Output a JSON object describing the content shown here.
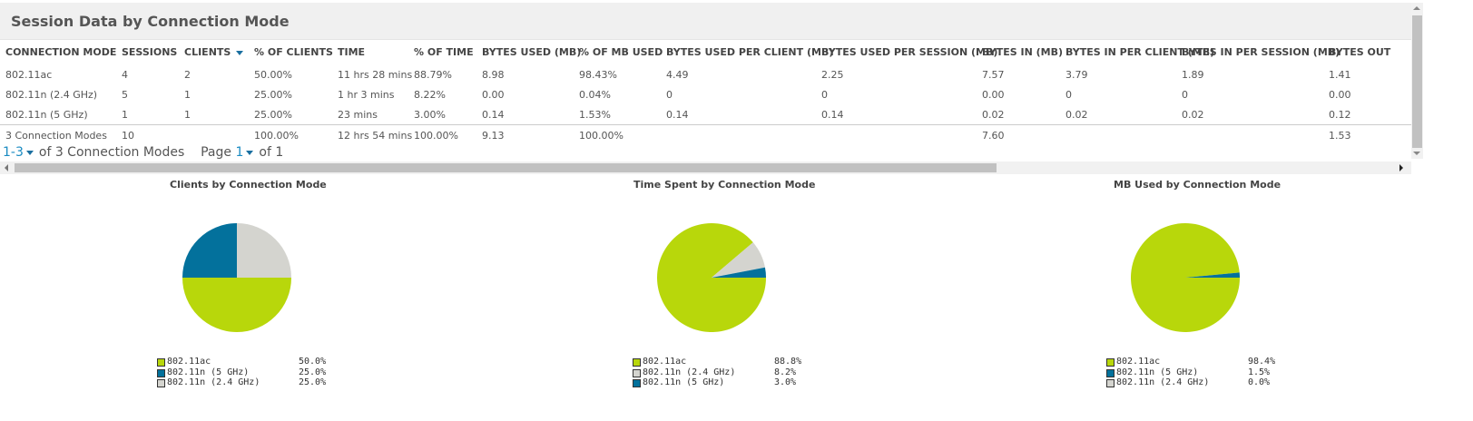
{
  "panel": {
    "title": "Session Data by Connection Mode"
  },
  "table": {
    "columns": [
      "CONNECTION MODE",
      "SESSIONS",
      "CLIENTS",
      "% OF CLIENTS",
      "TIME",
      "% OF TIME",
      "BYTES USED (MB)",
      "% OF MB USED",
      "BYTES USED PER CLIENT (MB)",
      "BYTES USED PER SESSION (MB)",
      "BYTES IN (MB)",
      "BYTES IN PER CLIENT (MB)",
      "BYTES IN PER SESSION (MB)",
      "BYTES OUT"
    ],
    "sorted_column": "CLIENTS",
    "rows": [
      [
        "802.11ac",
        "4",
        "2",
        "50.00%",
        "11 hrs 28 mins",
        "88.79%",
        "8.98",
        "98.43%",
        "4.49",
        "2.25",
        "7.57",
        "3.79",
        "1.89",
        "1.41"
      ],
      [
        "802.11n (2.4 GHz)",
        "5",
        "1",
        "25.00%",
        "1 hr 3 mins",
        "8.22%",
        "0.00",
        "0.04%",
        "0",
        "0",
        "0.00",
        "0",
        "0",
        "0.00"
      ],
      [
        "802.11n (5 GHz)",
        "1",
        "1",
        "25.00%",
        "23 mins",
        "3.00%",
        "0.14",
        "1.53%",
        "0.14",
        "0.14",
        "0.02",
        "0.02",
        "0.02",
        "0.12"
      ]
    ],
    "total": [
      "3 Connection Modes",
      "10",
      "",
      "100.00%",
      "12 hrs 54 mins",
      "100.00%",
      "9.13",
      "100.00%",
      "",
      "",
      "7.60",
      "",
      "",
      "1.53"
    ]
  },
  "pager": {
    "range": "1-3",
    "of_text": "of 3 Connection Modes",
    "page_label": "Page",
    "page": "1",
    "of_pages": "of 1"
  },
  "colors": {
    "ac": "#b8d70b",
    "n5": "#03719c",
    "n24": "#d4d4cf"
  },
  "chart_data": [
    {
      "type": "pie",
      "title": "Clients by Connection Mode",
      "slices": [
        {
          "label": "802.11ac",
          "value": 50.0,
          "pct_text": "50.0%",
          "color": "#b8d70b"
        },
        {
          "label": "802.11n (5 GHz)",
          "value": 25.0,
          "pct_text": "25.0%",
          "color": "#03719c"
        },
        {
          "label": "802.11n (2.4 GHz)",
          "value": 25.0,
          "pct_text": "25.0%",
          "color": "#d4d4cf"
        }
      ]
    },
    {
      "type": "pie",
      "title": "Time Spent by Connection Mode",
      "slices": [
        {
          "label": "802.11ac",
          "value": 88.8,
          "pct_text": "88.8%",
          "color": "#b8d70b"
        },
        {
          "label": "802.11n (2.4 GHz)",
          "value": 8.2,
          "pct_text": "8.2%",
          "color": "#d4d4cf"
        },
        {
          "label": "802.11n (5 GHz)",
          "value": 3.0,
          "pct_text": "3.0%",
          "color": "#03719c"
        }
      ]
    },
    {
      "type": "pie",
      "title": "MB Used by Connection Mode",
      "slices": [
        {
          "label": "802.11ac",
          "value": 98.4,
          "pct_text": "98.4%",
          "color": "#b8d70b"
        },
        {
          "label": "802.11n (5 GHz)",
          "value": 1.5,
          "pct_text": "1.5%",
          "color": "#03719c"
        },
        {
          "label": "802.11n (2.4 GHz)",
          "value": 0.0,
          "pct_text": "0.0%",
          "color": "#d4d4cf"
        }
      ]
    }
  ]
}
